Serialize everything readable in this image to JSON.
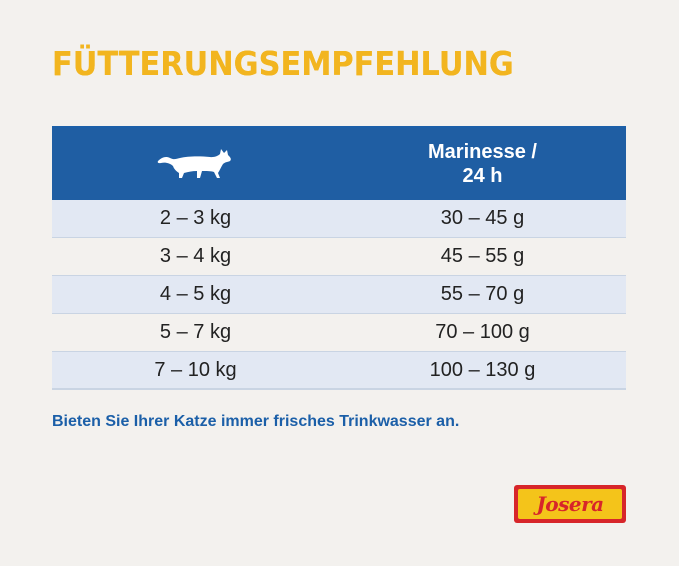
{
  "title": "FÜTTERUNGSEMPFEHLUNG",
  "table": {
    "header_icon": "cat-icon",
    "header_col2_line1": "Marinesse /",
    "header_col2_line2": "24 h",
    "rows": [
      {
        "weight": "2 – 3 kg",
        "amount": "30 – 45 g"
      },
      {
        "weight": "3 – 4 kg",
        "amount": "45 – 55 g"
      },
      {
        "weight": "4 – 5 kg",
        "amount": "55 – 70 g"
      },
      {
        "weight": "5 – 7 kg",
        "amount": "70 – 100 g"
      },
      {
        "weight": "7 – 10 kg",
        "amount": "100 – 130 g"
      }
    ]
  },
  "note": "Bieten Sie Ihrer Katze immer frisches Trinkwasser an.",
  "logo": {
    "text": "Josera"
  },
  "colors": {
    "title": "#f2b51f",
    "header_blue": "#1f5ea3",
    "row_shade": "#e2e8f3",
    "note_blue": "#1b5fa8",
    "logo_red": "#d7262a",
    "logo_yellow": "#f4c41a"
  }
}
